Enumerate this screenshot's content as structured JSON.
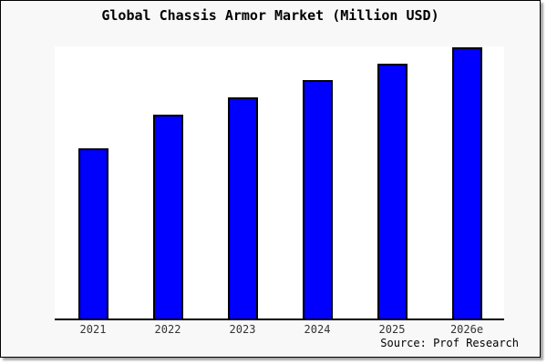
{
  "chart": {
    "title": "Global Chassis Armor Market (Million USD)",
    "source_label": "Source: Prof Research"
  },
  "colors": {
    "bar_fill": "#0000FF",
    "bar_border": "#000000",
    "card_background": "#F8F8F8",
    "plot_background": "#FFFFFF",
    "axis_line": "#000000",
    "title_text": "#000000",
    "tick_text": "#333333"
  },
  "chart_data": {
    "type": "bar",
    "title": "Global Chassis Armor Market (Million USD)",
    "categories": [
      "2021",
      "2022",
      "2023",
      "2024",
      "2025",
      "2026e"
    ],
    "values": [
      62.7,
      75.0,
      81.3,
      87.7,
      93.7,
      99.7
    ],
    "value_unit": "relative index (no y-axis scale or gridlines shown in image)",
    "xlabel": "",
    "ylabel": "",
    "ylim": [
      0,
      100
    ],
    "grid": false,
    "legend": false,
    "y_axis_labels_shown": false,
    "annotations": [
      "Source: Prof Research"
    ]
  }
}
